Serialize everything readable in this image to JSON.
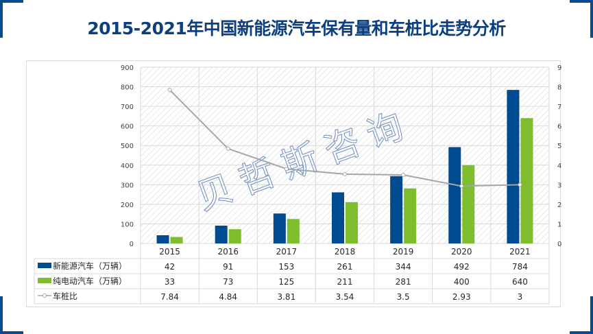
{
  "title": "2015-2021年中国新能源汽车保有量和车桩比走势分析",
  "watermark": "贝哲斯咨询",
  "colors": {
    "series1": "#004a8f",
    "series2": "#7dbd2e",
    "ratio": "#a6a6a6",
    "accent": "#0b4a8f"
  },
  "chart_data": {
    "type": "bar",
    "title": "2015-2021年中国新能源汽车保有量和车桩比走势分析",
    "categories": [
      "2015",
      "2016",
      "2017",
      "2018",
      "2019",
      "2020",
      "2021"
    ],
    "series": [
      {
        "name": "新能源汽车（万辆）",
        "type": "bar",
        "axis": "left",
        "values": [
          42,
          91,
          153,
          261,
          344,
          492,
          784
        ]
      },
      {
        "name": "纯电动汽车（万辆）",
        "type": "bar",
        "axis": "left",
        "values": [
          33,
          73,
          125,
          211,
          281,
          400,
          640
        ]
      },
      {
        "name": "车桩比",
        "type": "line",
        "axis": "right",
        "values": [
          "7.84",
          "4.84",
          "3.81",
          "3.54",
          "3.5",
          "2.93",
          "3"
        ]
      }
    ],
    "ylim": [
      0,
      900
    ],
    "yticks": [
      "0",
      "100",
      "200",
      "300",
      "400",
      "500",
      "600",
      "700",
      "800",
      "900"
    ],
    "y2lim": [
      0,
      9
    ],
    "y2ticks": [
      "0",
      "1",
      "2",
      "3",
      "4",
      "5",
      "6",
      "7",
      "8",
      "9"
    ],
    "legend": "data-table-bottom",
    "grid": true
  }
}
